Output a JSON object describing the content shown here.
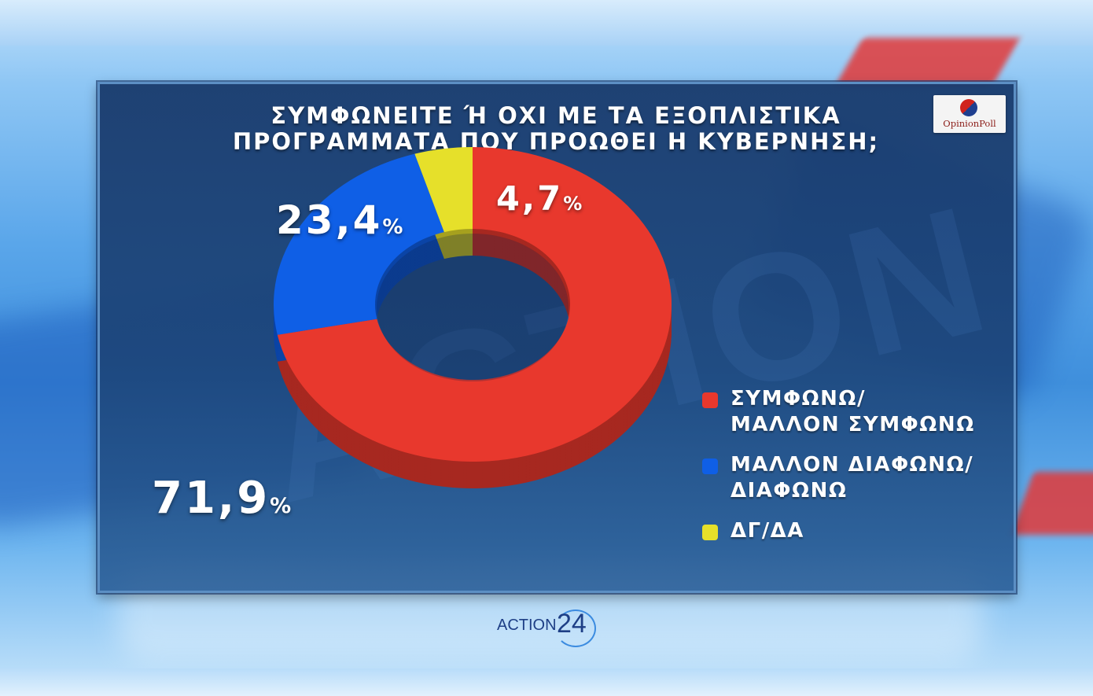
{
  "title_lines": [
    "ΣΥΜΦΩΝΕΙΤΕ Ή ΟΧΙ ΜΕ ΤΑ ΕΞΟΠΛΙΣΤΙΚΑ",
    "ΠΡΟΓΡΑΜΜΑΤΑ ΠΟΥ ΠΡΟΩΘΕΙ Η ΚΥΒΕΡΝΗΣΗ;"
  ],
  "logo_text": "OpinionPoll",
  "brand": {
    "name": "ACTION",
    "number": "24"
  },
  "watermark": "ACTION",
  "chart_data": {
    "type": "pie",
    "variant": "donut",
    "title": "ΣΥΜΦΩΝΕΙΤΕ Ή ΟΧΙ ΜΕ ΤΑ ΕΞΟΠΛΙΣΤΙΚΑ ΠΡΟΓΡΑΜΜΑΤΑ ΠΟΥ ΠΡΟΩΘΕΙ Η ΚΥΒΕΡΝΗΣΗ;",
    "unit": "%",
    "legend_position": "right",
    "slices": [
      {
        "label": "ΣΥΜΦΩΝΩ/\nΜΑΛΛΟΝ ΣΥΜΦΩΝΩ",
        "value": 71.9,
        "display": "71,9",
        "color": "#e8382d"
      },
      {
        "label": "ΜΑΛΛΟΝ ΔΙΑΦΩΝΩ/\nΔΙΑΦΩΝΩ",
        "value": 23.4,
        "display": "23,4",
        "color": "#0f5fe6"
      },
      {
        "label": "ΔΓ/ΔΑ",
        "value": 4.7,
        "display": "4,7",
        "color": "#e6e02a"
      }
    ]
  }
}
